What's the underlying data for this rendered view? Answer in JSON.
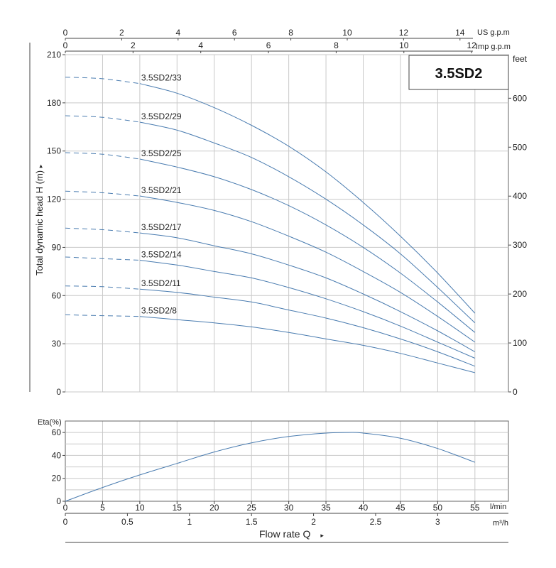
{
  "chart_data": [
    {
      "type": "line",
      "title": "3.5SD2",
      "ylabel": "Total dynamic head H (m)",
      "ylabel_arrow": "▸",
      "y2label": "feet",
      "top_axis_us_label": "US g.p.m",
      "top_axis_imp_label": "Imp g.p.m",
      "x_unit": "l/min",
      "xlim": [
        0,
        59.5
      ],
      "ylim": [
        0,
        210
      ],
      "y_ticks": [
        0,
        30,
        60,
        90,
        120,
        150,
        180,
        210
      ],
      "y2_ticks": [
        0,
        100,
        200,
        300,
        400,
        500,
        600
      ],
      "x_ticks": [
        0,
        5,
        10,
        15,
        20,
        25,
        30,
        35,
        40,
        45,
        50,
        55
      ],
      "us_gpm_ticks": [
        0,
        2,
        4,
        6,
        8,
        10,
        12,
        14
      ],
      "imp_gpm_ticks": [
        0,
        2,
        4,
        6,
        8,
        10,
        12
      ],
      "grid": true,
      "dashed_region_lmin": [
        0,
        10
      ],
      "series": [
        {
          "name": "3.5SD2/33",
          "x": [
            0,
            5,
            10,
            15,
            20,
            25,
            30,
            35,
            40,
            45,
            50,
            55
          ],
          "y": [
            196,
            195,
            192,
            186,
            177,
            166,
            153,
            137,
            118,
            97,
            74,
            49
          ]
        },
        {
          "name": "3.5SD2/29",
          "x": [
            0,
            5,
            10,
            15,
            20,
            25,
            30,
            35,
            40,
            45,
            50,
            55
          ],
          "y": [
            172,
            171,
            168,
            163,
            155,
            146,
            134,
            120,
            104,
            86,
            65,
            43
          ]
        },
        {
          "name": "3.5SD2/25",
          "x": [
            0,
            5,
            10,
            15,
            20,
            25,
            30,
            35,
            40,
            45,
            50,
            55
          ],
          "y": [
            149,
            148,
            145,
            140,
            134,
            126,
            116,
            104,
            90,
            74,
            56,
            37
          ]
        },
        {
          "name": "3.5SD2/21",
          "x": [
            0,
            5,
            10,
            15,
            20,
            25,
            30,
            35,
            40,
            45,
            50,
            55
          ],
          "y": [
            125,
            124,
            122,
            118,
            113,
            106,
            97,
            87,
            75,
            62,
            47,
            31
          ]
        },
        {
          "name": "3.5SD2/17",
          "x": [
            0,
            5,
            10,
            15,
            20,
            25,
            30,
            35,
            40,
            45,
            50,
            55
          ],
          "y": [
            102,
            101,
            99,
            96,
            91,
            86,
            79,
            71,
            61,
            50,
            38,
            25
          ]
        },
        {
          "name": "3.5SD2/14",
          "x": [
            0,
            5,
            10,
            15,
            20,
            25,
            30,
            35,
            40,
            45,
            50,
            55
          ],
          "y": [
            84,
            83,
            82,
            79,
            75,
            71,
            65,
            58,
            50,
            41,
            31,
            21
          ]
        },
        {
          "name": "3.5SD2/11",
          "x": [
            0,
            5,
            10,
            15,
            20,
            25,
            30,
            35,
            40,
            45,
            50,
            55
          ],
          "y": [
            66,
            65.5,
            64,
            62,
            59,
            56,
            51,
            46,
            40,
            33,
            25,
            16
          ]
        },
        {
          "name": "3.5SD2/8",
          "x": [
            0,
            5,
            10,
            15,
            20,
            25,
            30,
            35,
            40,
            45,
            50,
            55
          ],
          "y": [
            48,
            47.5,
            47,
            45,
            43,
            40.5,
            37,
            33,
            29,
            24,
            18,
            12
          ]
        }
      ]
    },
    {
      "type": "line",
      "ylabel": "Eta(%)",
      "xlabel": "Flow rate Q",
      "xlabel_arrow": "▸",
      "x_unit": "l/min",
      "x_unit2": "m³/h",
      "xlim": [
        0,
        59.5
      ],
      "ylim": [
        0,
        70
      ],
      "y_ticks": [
        0,
        20,
        40,
        60
      ],
      "x_ticks": [
        0,
        5,
        10,
        15,
        20,
        25,
        30,
        35,
        40,
        45,
        50,
        55
      ],
      "m3h_ticks": [
        0,
        0.5,
        1,
        1.5,
        2,
        2.5,
        3
      ],
      "grid": true,
      "series": [
        {
          "name": "",
          "x": [
            0,
            5,
            10,
            15,
            20,
            25,
            30,
            35,
            38,
            40,
            45,
            50,
            55
          ],
          "y": [
            0,
            12,
            23,
            33,
            43,
            51,
            56.5,
            59.5,
            60,
            59.5,
            55,
            46,
            34
          ]
        }
      ]
    }
  ]
}
